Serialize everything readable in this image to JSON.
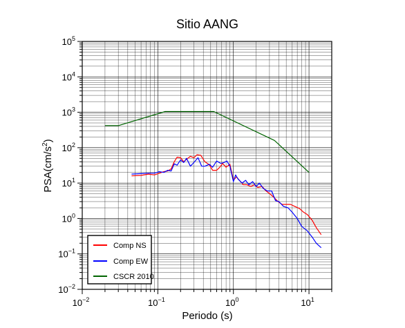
{
  "chart_data": {
    "type": "line",
    "title": "Sitio AANG",
    "xlabel": "Periodo (s)",
    "ylabel": {
      "prefix": "PSA(cm/s",
      "sup": "2",
      "suffix": ")"
    },
    "x_scale": "log",
    "y_scale": "log",
    "xlim": [
      0.01,
      20
    ],
    "ylim": [
      0.01,
      100000
    ],
    "grid": true,
    "legend_position": "bottom-left",
    "x_ticks": [
      {
        "value": 0.01,
        "base": "10",
        "exp": "−2"
      },
      {
        "value": 0.1,
        "base": "10",
        "exp": "−1"
      },
      {
        "value": 1,
        "base": "10",
        "exp": "0"
      },
      {
        "value": 10,
        "base": "10",
        "exp": "1"
      }
    ],
    "y_ticks": [
      {
        "value": 0.01,
        "base": "10",
        "exp": "−2"
      },
      {
        "value": 0.1,
        "base": "10",
        "exp": "−1"
      },
      {
        "value": 1,
        "base": "10",
        "exp": "0"
      },
      {
        "value": 10,
        "base": "10",
        "exp": "1"
      },
      {
        "value": 100,
        "base": "10",
        "exp": "2"
      },
      {
        "value": 1000,
        "base": "10",
        "exp": "3"
      },
      {
        "value": 10000,
        "base": "10",
        "exp": "4"
      },
      {
        "value": 100000,
        "base": "10",
        "exp": "5"
      }
    ],
    "series": [
      {
        "name": "Comp NS",
        "color": "#ff0000",
        "points": [
          [
            0.045,
            16
          ],
          [
            0.06,
            16.5
          ],
          [
            0.075,
            18
          ],
          [
            0.09,
            17
          ],
          [
            0.105,
            19
          ],
          [
            0.12,
            21
          ],
          [
            0.135,
            22
          ],
          [
            0.15,
            25
          ],
          [
            0.165,
            40
          ],
          [
            0.18,
            54
          ],
          [
            0.2,
            52
          ],
          [
            0.22,
            40
          ],
          [
            0.24,
            47
          ],
          [
            0.27,
            57
          ],
          [
            0.3,
            52
          ],
          [
            0.33,
            63
          ],
          [
            0.37,
            61
          ],
          [
            0.42,
            40
          ],
          [
            0.48,
            33
          ],
          [
            0.53,
            23
          ],
          [
            0.6,
            23
          ],
          [
            0.66,
            28
          ],
          [
            0.72,
            36
          ],
          [
            0.8,
            28
          ],
          [
            0.9,
            34
          ],
          [
            1.0,
            12
          ],
          [
            1.1,
            15
          ],
          [
            1.2,
            12
          ],
          [
            1.35,
            9
          ],
          [
            1.5,
            9
          ],
          [
            1.7,
            8
          ],
          [
            1.9,
            9
          ],
          [
            2.1,
            7.5
          ],
          [
            2.4,
            8
          ],
          [
            2.7,
            6
          ],
          [
            3.1,
            4.8
          ],
          [
            3.5,
            3.8
          ],
          [
            3.9,
            3
          ],
          [
            4.4,
            2.5
          ],
          [
            5.0,
            2.5
          ],
          [
            5.7,
            2.5
          ],
          [
            6.5,
            2.2
          ],
          [
            7.5,
            1.9
          ],
          [
            8.5,
            1.5
          ],
          [
            9.5,
            1.3
          ],
          [
            11,
            0.9
          ],
          [
            12.5,
            0.55
          ],
          [
            14.5,
            0.35
          ]
        ]
      },
      {
        "name": "Comp EW",
        "color": "#0000ff",
        "points": [
          [
            0.045,
            18
          ],
          [
            0.06,
            18.5
          ],
          [
            0.075,
            19
          ],
          [
            0.09,
            19
          ],
          [
            0.105,
            21
          ],
          [
            0.12,
            20
          ],
          [
            0.135,
            23
          ],
          [
            0.15,
            22
          ],
          [
            0.165,
            35
          ],
          [
            0.18,
            32
          ],
          [
            0.2,
            45
          ],
          [
            0.22,
            38
          ],
          [
            0.24,
            50
          ],
          [
            0.27,
            30
          ],
          [
            0.3,
            38
          ],
          [
            0.34,
            52
          ],
          [
            0.38,
            30
          ],
          [
            0.42,
            30
          ],
          [
            0.48,
            34
          ],
          [
            0.53,
            28
          ],
          [
            0.6,
            42
          ],
          [
            0.68,
            36
          ],
          [
            0.75,
            38
          ],
          [
            0.82,
            42
          ],
          [
            0.9,
            30
          ],
          [
            1.0,
            11
          ],
          [
            1.07,
            17
          ],
          [
            1.15,
            13
          ],
          [
            1.3,
            10
          ],
          [
            1.45,
            12
          ],
          [
            1.6,
            9
          ],
          [
            1.8,
            11
          ],
          [
            2.0,
            8
          ],
          [
            2.2,
            10
          ],
          [
            2.5,
            7
          ],
          [
            2.8,
            6
          ],
          [
            3.2,
            6
          ],
          [
            3.6,
            3.2
          ],
          [
            4.0,
            3.0
          ],
          [
            4.6,
            2.2
          ],
          [
            5.3,
            2.0
          ],
          [
            6.0,
            1.5
          ],
          [
            7.0,
            1.0
          ],
          [
            8.0,
            0.6
          ],
          [
            9.5,
            0.45
          ],
          [
            11,
            0.3
          ],
          [
            12.5,
            0.2
          ],
          [
            14.5,
            0.15
          ]
        ]
      },
      {
        "name": "CSCR 2010",
        "color": "#006400",
        "points": [
          [
            0.02,
            420
          ],
          [
            0.03,
            420
          ],
          [
            0.125,
            1050
          ],
          [
            0.55,
            1050
          ],
          [
            3.5,
            160
          ],
          [
            10,
            20
          ]
        ]
      }
    ]
  }
}
